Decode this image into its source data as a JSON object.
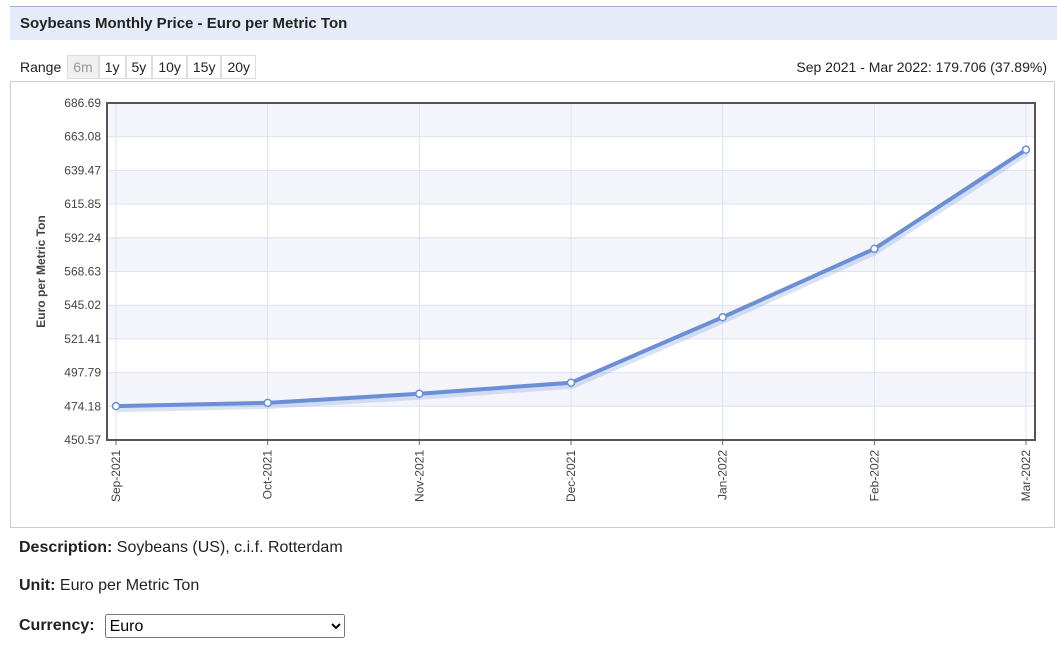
{
  "header": {
    "title": "Soybeans Monthly Price - Euro per Metric Ton"
  },
  "range": {
    "label": "Range",
    "buttons": [
      "6m",
      "1y",
      "5y",
      "10y",
      "15y",
      "20y"
    ],
    "selected": "6m",
    "summary": "Sep 2021 - Mar 2022: 179.706 (37.89%)"
  },
  "chart_data": {
    "type": "line",
    "y_label": "Euro per Metric Ton",
    "categories": [
      "Sep-2021",
      "Oct-2021",
      "Nov-2021",
      "Dec-2021",
      "Jan-2022",
      "Feb-2022",
      "Mar-2022"
    ],
    "values": [
      474.28,
      476.6,
      483.0,
      490.7,
      536.6,
      584.5,
      653.99
    ],
    "color": "#6b8fd6",
    "ylim": [
      450.57,
      686.69
    ],
    "yticks": [
      450.57,
      474.18,
      497.79,
      521.41,
      545.02,
      568.63,
      592.24,
      615.85,
      639.47,
      663.08,
      686.69
    ],
    "grid": true
  },
  "details": {
    "description": {
      "label": "Description:",
      "value": "Soybeans (US), c.i.f. Rotterdam"
    },
    "unit": {
      "label": "Unit:",
      "value": "Euro per Metric Ton"
    },
    "currency": {
      "label": "Currency:",
      "value": "Euro"
    }
  }
}
